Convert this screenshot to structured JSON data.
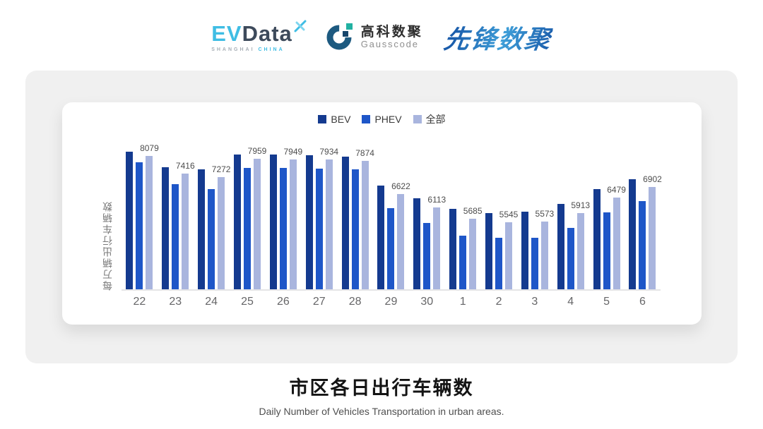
{
  "logos": {
    "evdata": {
      "ev": "EV",
      "data": "Data",
      "tagline_left": "SHANGHAI",
      "tagline_right": "CHINA"
    },
    "gausscode": {
      "name_cn": "高科数聚",
      "name_en": "Gausscode"
    },
    "pioneer": {
      "name": "先锋数聚"
    }
  },
  "chart_data": {
    "type": "bar",
    "title": "市区各日出行车辆数",
    "subtitle": "Daily Number of Vehicles Transportation in urban areas.",
    "ylabel": "每万辆出行车辆数",
    "xlabel": "",
    "legend_position": "top",
    "grid": false,
    "y_axis_labels_visible": false,
    "ymin": 3000,
    "ymax": 8370,
    "categories": [
      "22",
      "23",
      "24",
      "25",
      "26",
      "27",
      "28",
      "29",
      "30",
      "1",
      "2",
      "3",
      "4",
      "5",
      "6"
    ],
    "series": [
      {
        "name": "BEV",
        "color": "#143A8F",
        "values": [
          8230,
          7650,
          7560,
          8140,
          8120,
          8110,
          8040,
          6950,
          6470,
          6070,
          5900,
          5950,
          6260,
          6800,
          7200
        ]
      },
      {
        "name": "PHEV",
        "color": "#1E56C8",
        "values": [
          7845,
          7005,
          6800,
          7630,
          7620,
          7600,
          7560,
          6080,
          5520,
          5050,
          4960,
          4950,
          5340,
          5920,
          6350
        ]
      },
      {
        "name": "全部",
        "color": "#A9B5DE",
        "labeled": true,
        "values": [
          8079,
          7416,
          7272,
          7959,
          7949,
          7934,
          7874,
          6622,
          6113,
          5685,
          5545,
          5573,
          5913,
          6479,
          6902
        ]
      }
    ],
    "data_labels": {
      "series": "全部",
      "values": [
        8079,
        7416,
        7272,
        7959,
        7949,
        7934,
        7874,
        6622,
        6113,
        5685,
        5545,
        5573,
        5913,
        6479,
        6902
      ]
    }
  },
  "colors": {
    "bev": "#143A8F",
    "phev": "#1E56C8",
    "all": "#A9B5DE",
    "panel_bg": "#f0f0f0",
    "card_bg": "#ffffff",
    "axis_line": "#e4e4e6",
    "evdata_cyan": "#3fbde4",
    "evdata_slate": "#3d4a5b",
    "gauss_navy": "#1d5a80",
    "gauss_teal": "#21b1a2",
    "pioneer_blue": "#1a5cab"
  }
}
